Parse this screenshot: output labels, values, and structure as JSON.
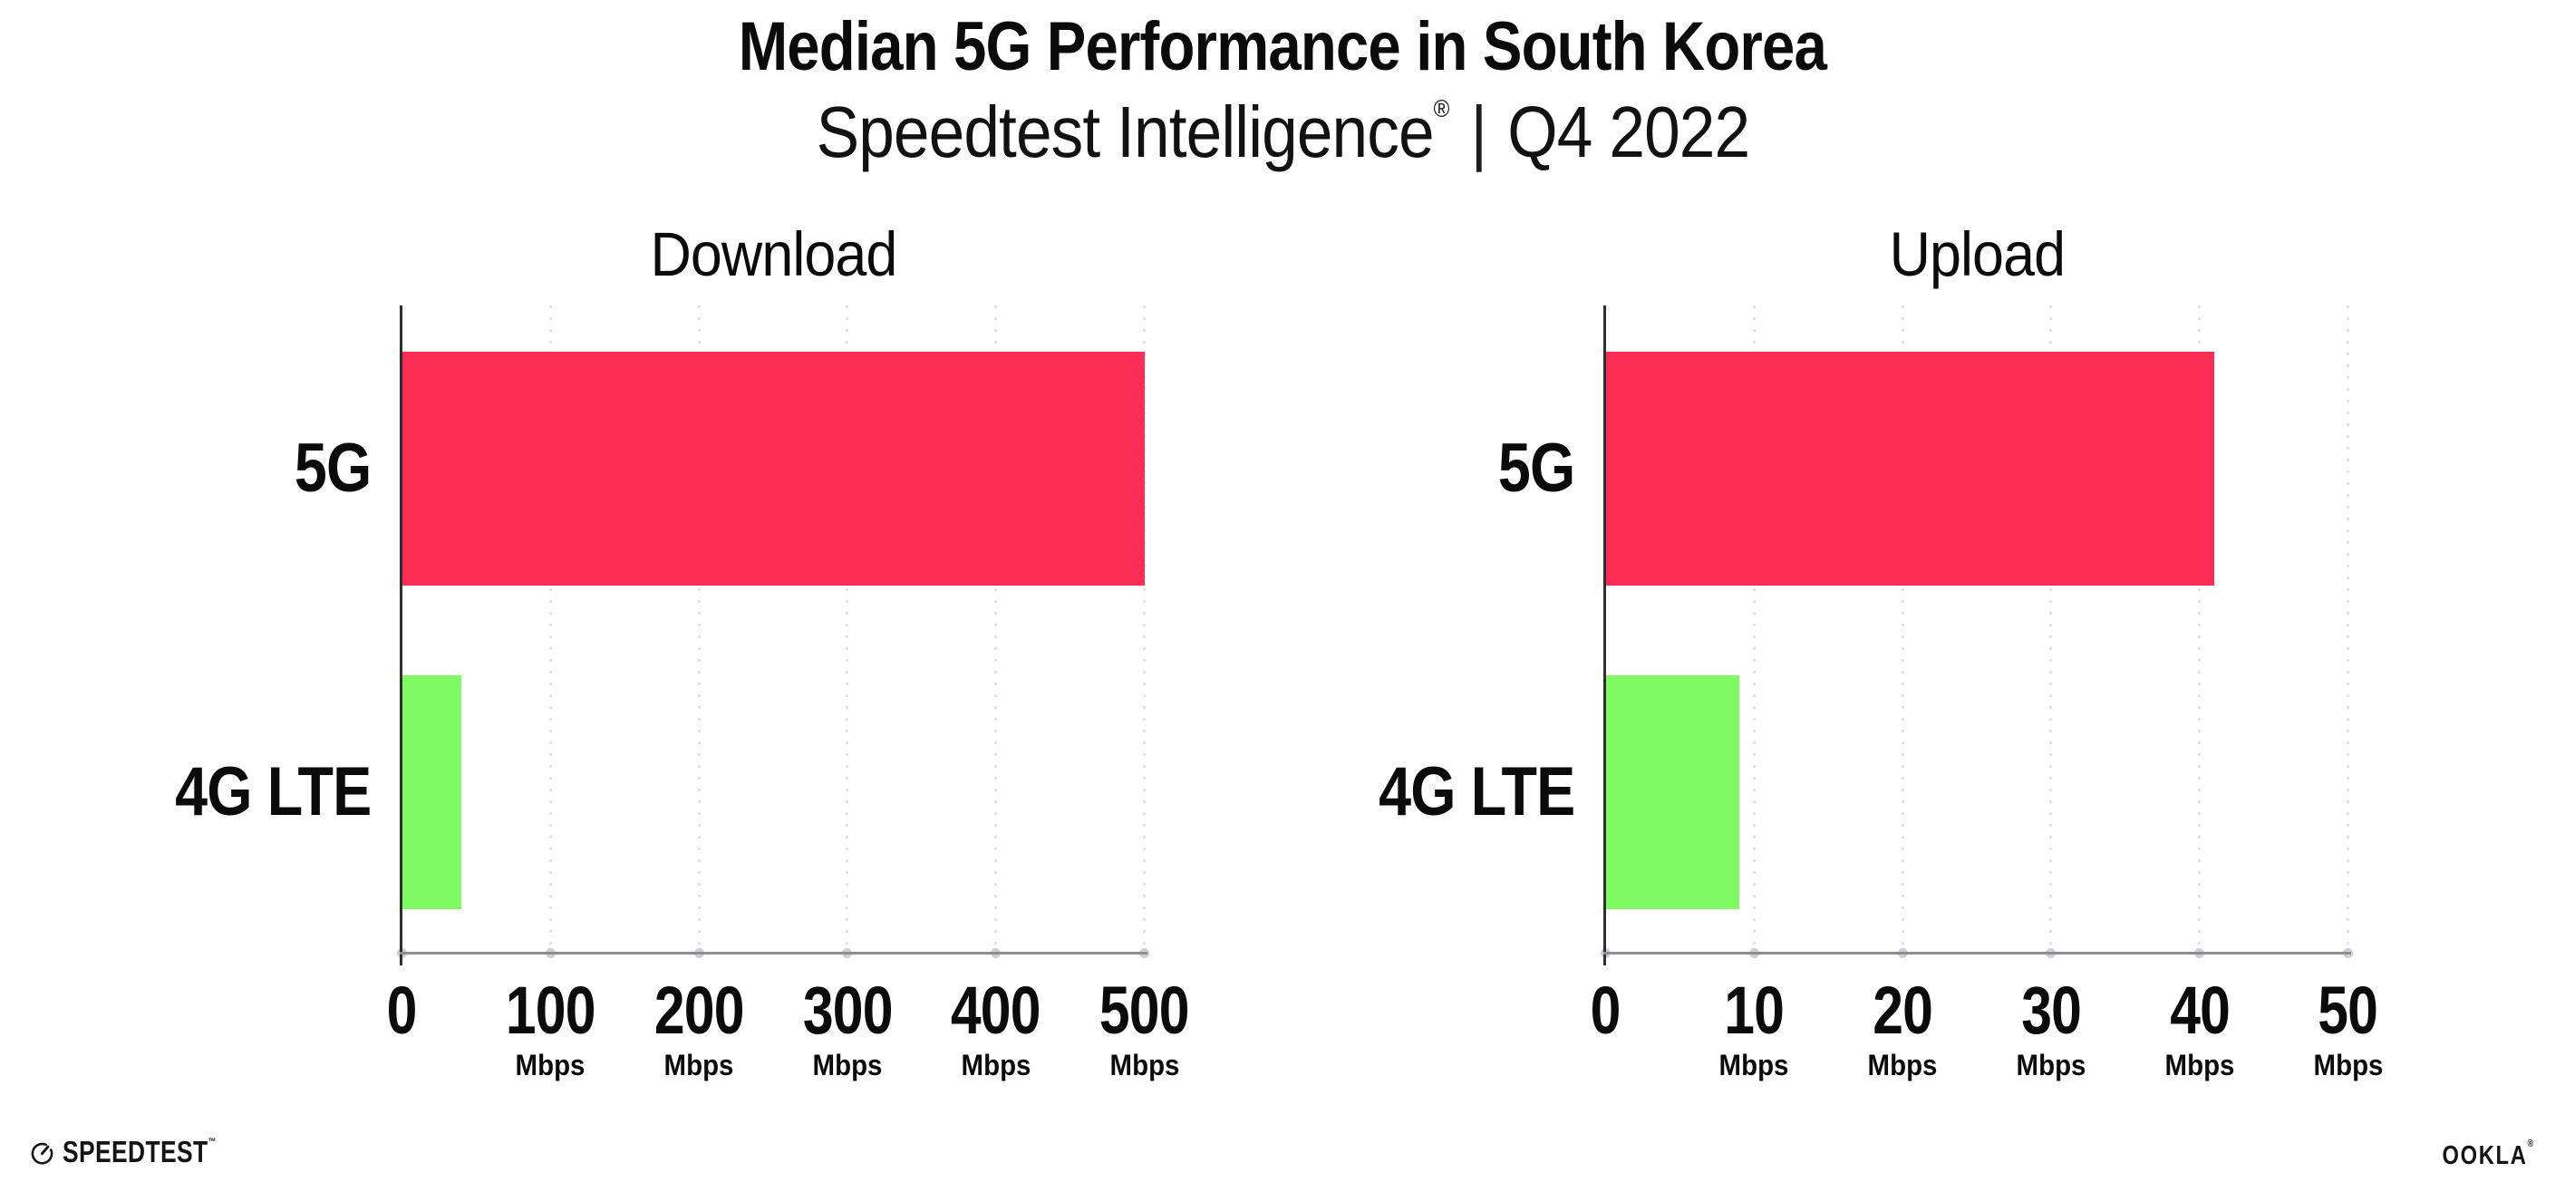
{
  "header": {
    "title": "Median 5G Performance in South Korea",
    "subtitle": {
      "brand": "Speedtest Intelligence",
      "registered_mark": "®",
      "separator": "|",
      "period": "Q4 2022"
    }
  },
  "chart_data": [
    {
      "type": "bar",
      "orientation": "horizontal",
      "title": "Download",
      "unit": "Mbps",
      "categories": [
        "5G",
        "4G LTE"
      ],
      "values": [
        500,
        40
      ],
      "xlim": [
        0,
        500
      ],
      "xticks": [
        0,
        100,
        200,
        300,
        400,
        500
      ],
      "bar_colors": [
        "#FB2D55",
        "#80FB64"
      ],
      "grid": "dotted-vertical",
      "legend": false
    },
    {
      "type": "bar",
      "orientation": "horizontal",
      "title": "Upload",
      "unit": "Mbps",
      "categories": [
        "5G",
        "4G LTE"
      ],
      "values": [
        41,
        9
      ],
      "xlim": [
        0,
        50
      ],
      "xticks": [
        0,
        10,
        20,
        30,
        40,
        50
      ],
      "bar_colors": [
        "#FB2D55",
        "#80FB64"
      ],
      "grid": "dotted-vertical",
      "legend": false
    }
  ],
  "footer": {
    "speedtest_label": "SPEEDTEST",
    "speedtest_mark": "™",
    "speedtest_icon": "gauge-icon",
    "ookla_label": "OOKLA",
    "ookla_mark": "®"
  },
  "colors": {
    "bar_5g": "#FB2D55",
    "bar_4g_lte": "#80FB64",
    "gridline": "#E2E3EE",
    "x_axis": "#8E8E90",
    "y_axis": "#2F2F31",
    "text": "#0B0B0C",
    "background": "#FFFFFF"
  }
}
